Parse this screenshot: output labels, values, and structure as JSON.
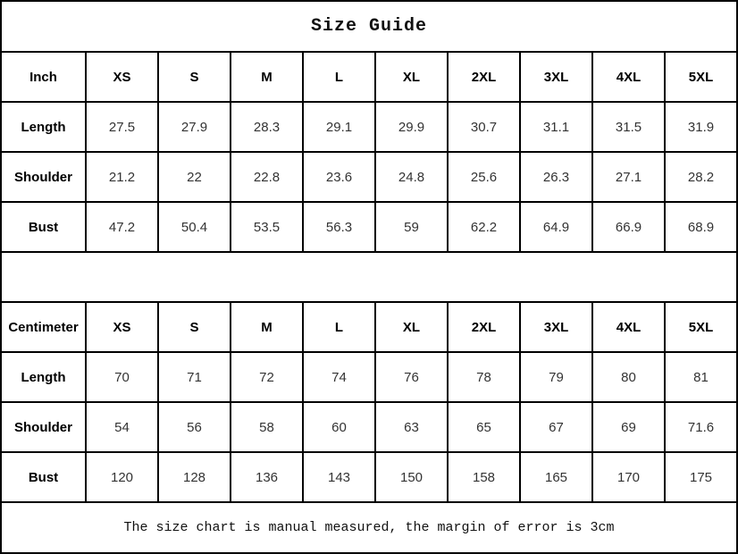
{
  "title": "Size Guide",
  "footer_note": "The size chart is manual measured, the margin of error is 3cm",
  "chart_data": [
    {
      "type": "table",
      "unit_label": "Inch",
      "sizes": [
        "XS",
        "S",
        "M",
        "L",
        "XL",
        "2XL",
        "3XL",
        "4XL",
        "5XL"
      ],
      "rows": [
        {
          "label": "Length",
          "values": [
            "27.5",
            "27.9",
            "28.3",
            "29.1",
            "29.9",
            "30.7",
            "31.1",
            "31.5",
            "31.9"
          ]
        },
        {
          "label": "Shoulder",
          "values": [
            "21.2",
            "22",
            "22.8",
            "23.6",
            "24.8",
            "25.6",
            "26.3",
            "27.1",
            "28.2"
          ]
        },
        {
          "label": "Bust",
          "values": [
            "47.2",
            "50.4",
            "53.5",
            "56.3",
            "59",
            "62.2",
            "64.9",
            "66.9",
            "68.9"
          ]
        }
      ]
    },
    {
      "type": "table",
      "unit_label": "Centimeter",
      "sizes": [
        "XS",
        "S",
        "M",
        "L",
        "XL",
        "2XL",
        "3XL",
        "4XL",
        "5XL"
      ],
      "rows": [
        {
          "label": "Length",
          "values": [
            "70",
            "71",
            "72",
            "74",
            "76",
            "78",
            "79",
            "80",
            "81"
          ]
        },
        {
          "label": "Shoulder",
          "values": [
            "54",
            "56",
            "58",
            "60",
            "63",
            "65",
            "67",
            "69",
            "71.6"
          ]
        },
        {
          "label": "Bust",
          "values": [
            "120",
            "128",
            "136",
            "143",
            "150",
            "158",
            "165",
            "170",
            "175"
          ]
        }
      ]
    }
  ],
  "colors": {
    "border": "#000000",
    "background": "#ffffff",
    "label_text": "#000000",
    "value_text": "#333333"
  }
}
